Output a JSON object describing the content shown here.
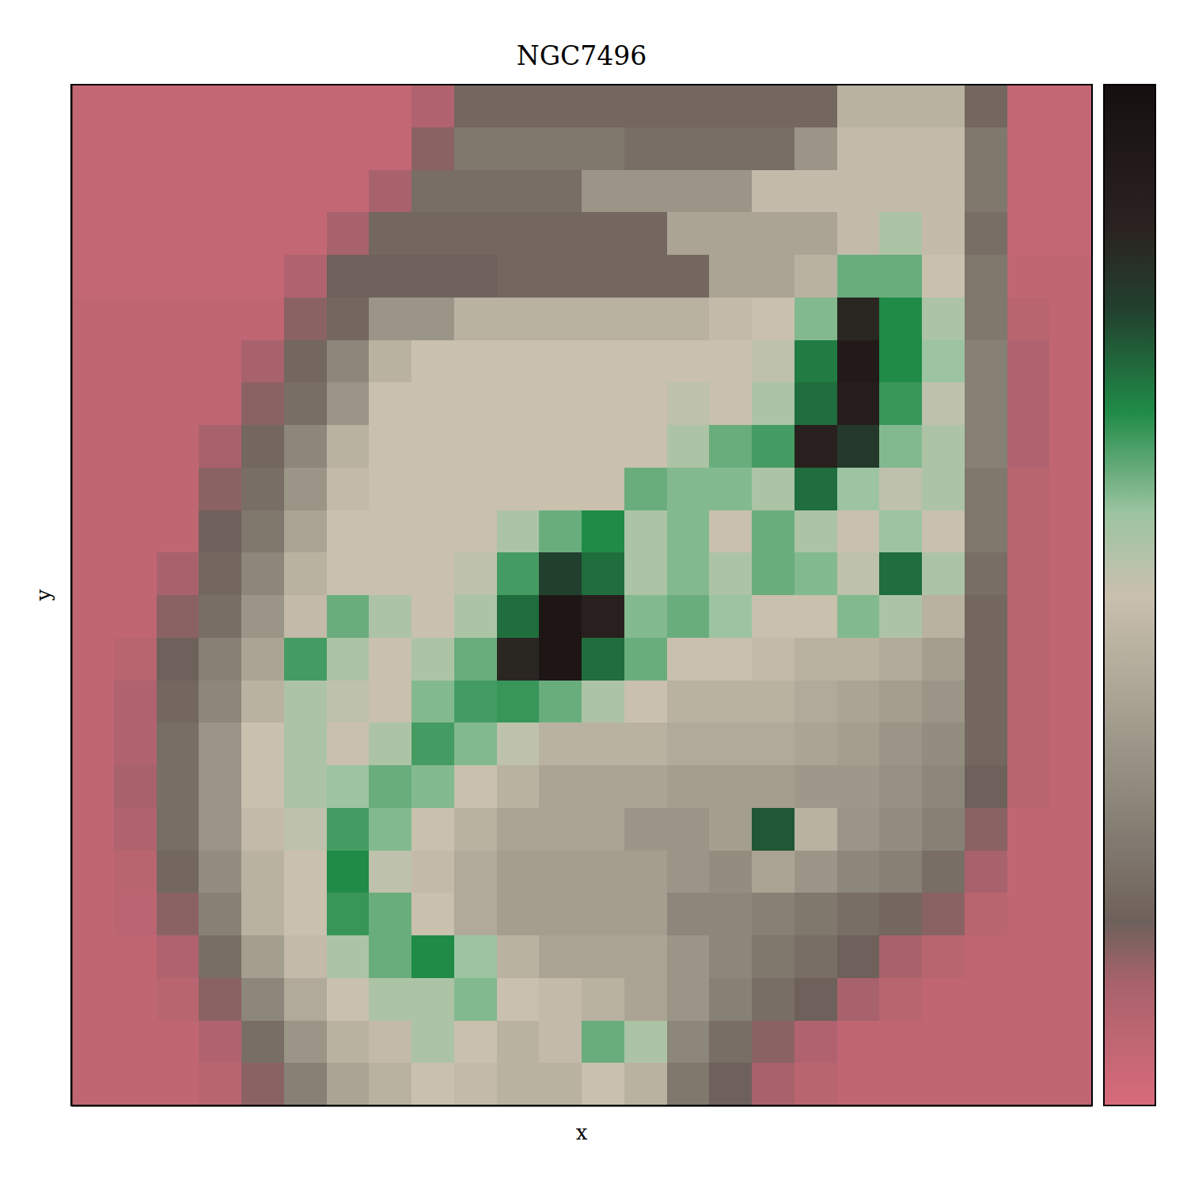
{
  "chart_data": {
    "type": "heatmap",
    "title": "NGC7496",
    "x_label": "x",
    "y_label": "y",
    "tick_labels": false,
    "zlim": [
      0,
      1
    ],
    "z": [
      [
        0.05,
        0.05,
        0.05,
        0.05,
        0.05,
        0.05,
        0.05,
        0.05,
        0.1,
        0.2,
        0.2,
        0.2,
        0.2,
        0.2,
        0.2,
        0.2,
        0.2,
        0.2,
        0.45,
        0.45,
        0.45,
        0.2,
        0.05,
        0.05
      ],
      [
        0.05,
        0.05,
        0.05,
        0.05,
        0.05,
        0.05,
        0.05,
        0.05,
        0.15,
        0.25,
        0.25,
        0.25,
        0.25,
        0.22,
        0.22,
        0.22,
        0.22,
        0.35,
        0.48,
        0.48,
        0.48,
        0.25,
        0.05,
        0.05
      ],
      [
        0.05,
        0.05,
        0.05,
        0.05,
        0.05,
        0.05,
        0.05,
        0.12,
        0.22,
        0.22,
        0.22,
        0.22,
        0.35,
        0.35,
        0.35,
        0.35,
        0.48,
        0.48,
        0.48,
        0.48,
        0.48,
        0.25,
        0.05,
        0.05
      ],
      [
        0.05,
        0.05,
        0.05,
        0.05,
        0.05,
        0.05,
        0.12,
        0.2,
        0.2,
        0.2,
        0.2,
        0.2,
        0.2,
        0.2,
        0.4,
        0.4,
        0.4,
        0.4,
        0.48,
        0.55,
        0.48,
        0.22,
        0.05,
        0.05
      ],
      [
        0.05,
        0.05,
        0.05,
        0.05,
        0.05,
        0.1,
        0.18,
        0.18,
        0.18,
        0.18,
        0.2,
        0.2,
        0.2,
        0.2,
        0.2,
        0.4,
        0.4,
        0.45,
        0.62,
        0.62,
        0.5,
        0.25,
        0.06,
        0.06
      ],
      [
        0.06,
        0.06,
        0.06,
        0.06,
        0.06,
        0.15,
        0.2,
        0.35,
        0.35,
        0.45,
        0.45,
        0.45,
        0.45,
        0.45,
        0.45,
        0.48,
        0.5,
        0.6,
        0.85,
        0.68,
        0.55,
        0.25,
        0.08,
        0.06
      ],
      [
        0.06,
        0.06,
        0.06,
        0.06,
        0.12,
        0.2,
        0.3,
        0.45,
        0.5,
        0.5,
        0.5,
        0.5,
        0.5,
        0.5,
        0.5,
        0.5,
        0.52,
        0.7,
        0.92,
        0.68,
        0.58,
        0.28,
        0.1,
        0.06
      ],
      [
        0.06,
        0.06,
        0.06,
        0.06,
        0.15,
        0.22,
        0.35,
        0.5,
        0.5,
        0.5,
        0.5,
        0.5,
        0.5,
        0.5,
        0.52,
        0.5,
        0.55,
        0.72,
        0.9,
        0.66,
        0.52,
        0.28,
        0.1,
        0.06
      ],
      [
        0.06,
        0.06,
        0.06,
        0.12,
        0.2,
        0.3,
        0.45,
        0.5,
        0.5,
        0.5,
        0.5,
        0.5,
        0.5,
        0.5,
        0.55,
        0.62,
        0.65,
        0.88,
        0.8,
        0.6,
        0.55,
        0.28,
        0.1,
        0.06
      ],
      [
        0.06,
        0.06,
        0.06,
        0.15,
        0.22,
        0.35,
        0.48,
        0.5,
        0.5,
        0.5,
        0.5,
        0.5,
        0.5,
        0.62,
        0.6,
        0.6,
        0.55,
        0.72,
        0.58,
        0.52,
        0.55,
        0.25,
        0.08,
        0.06
      ],
      [
        0.06,
        0.06,
        0.06,
        0.18,
        0.25,
        0.4,
        0.5,
        0.5,
        0.5,
        0.5,
        0.55,
        0.62,
        0.68,
        0.55,
        0.6,
        0.5,
        0.62,
        0.55,
        0.5,
        0.58,
        0.5,
        0.25,
        0.08,
        0.06
      ],
      [
        0.06,
        0.06,
        0.12,
        0.2,
        0.3,
        0.45,
        0.5,
        0.5,
        0.5,
        0.52,
        0.65,
        0.78,
        0.72,
        0.55,
        0.6,
        0.55,
        0.62,
        0.6,
        0.52,
        0.72,
        0.55,
        0.22,
        0.08,
        0.06
      ],
      [
        0.06,
        0.06,
        0.15,
        0.22,
        0.35,
        0.48,
        0.62,
        0.55,
        0.5,
        0.55,
        0.72,
        0.95,
        0.88,
        0.6,
        0.62,
        0.58,
        0.5,
        0.5,
        0.6,
        0.55,
        0.45,
        0.2,
        0.08,
        0.06
      ],
      [
        0.06,
        0.08,
        0.18,
        0.28,
        0.4,
        0.65,
        0.55,
        0.5,
        0.55,
        0.62,
        0.85,
        0.95,
        0.72,
        0.62,
        0.5,
        0.5,
        0.48,
        0.45,
        0.45,
        0.42,
        0.38,
        0.2,
        0.08,
        0.06
      ],
      [
        0.06,
        0.1,
        0.2,
        0.3,
        0.45,
        0.55,
        0.52,
        0.5,
        0.6,
        0.65,
        0.66,
        0.62,
        0.55,
        0.5,
        0.45,
        0.45,
        0.45,
        0.42,
        0.4,
        0.38,
        0.35,
        0.2,
        0.08,
        0.06
      ],
      [
        0.06,
        0.1,
        0.22,
        0.35,
        0.5,
        0.55,
        0.5,
        0.55,
        0.65,
        0.6,
        0.52,
        0.45,
        0.45,
        0.45,
        0.42,
        0.42,
        0.42,
        0.4,
        0.38,
        0.35,
        0.32,
        0.2,
        0.08,
        0.06
      ],
      [
        0.06,
        0.12,
        0.22,
        0.35,
        0.5,
        0.55,
        0.58,
        0.62,
        0.6,
        0.5,
        0.45,
        0.4,
        0.4,
        0.4,
        0.38,
        0.38,
        0.38,
        0.36,
        0.36,
        0.33,
        0.3,
        0.18,
        0.08,
        0.06
      ],
      [
        0.06,
        0.1,
        0.22,
        0.35,
        0.48,
        0.52,
        0.65,
        0.6,
        0.5,
        0.45,
        0.4,
        0.4,
        0.4,
        0.35,
        0.35,
        0.38,
        0.75,
        0.45,
        0.35,
        0.32,
        0.28,
        0.15,
        0.06,
        0.06
      ],
      [
        0.06,
        0.08,
        0.2,
        0.32,
        0.45,
        0.5,
        0.68,
        0.52,
        0.48,
        0.42,
        0.38,
        0.38,
        0.38,
        0.38,
        0.35,
        0.32,
        0.4,
        0.35,
        0.3,
        0.28,
        0.22,
        0.12,
        0.06,
        0.06
      ],
      [
        0.06,
        0.07,
        0.15,
        0.28,
        0.45,
        0.5,
        0.66,
        0.62,
        0.5,
        0.42,
        0.38,
        0.38,
        0.38,
        0.38,
        0.3,
        0.3,
        0.28,
        0.25,
        0.22,
        0.2,
        0.15,
        0.08,
        0.06,
        0.06
      ],
      [
        0.06,
        0.06,
        0.1,
        0.22,
        0.38,
        0.48,
        0.55,
        0.62,
        0.68,
        0.58,
        0.45,
        0.4,
        0.4,
        0.4,
        0.35,
        0.3,
        0.25,
        0.22,
        0.18,
        0.12,
        0.08,
        0.06,
        0.06,
        0.06
      ],
      [
        0.06,
        0.06,
        0.08,
        0.15,
        0.3,
        0.42,
        0.5,
        0.55,
        0.55,
        0.6,
        0.5,
        0.48,
        0.45,
        0.4,
        0.35,
        0.28,
        0.22,
        0.18,
        0.12,
        0.08,
        0.06,
        0.06,
        0.06,
        0.06
      ],
      [
        0.06,
        0.06,
        0.06,
        0.1,
        0.22,
        0.35,
        0.45,
        0.48,
        0.55,
        0.5,
        0.45,
        0.48,
        0.62,
        0.55,
        0.3,
        0.22,
        0.15,
        0.1,
        0.06,
        0.06,
        0.06,
        0.06,
        0.06,
        0.06
      ],
      [
        0.06,
        0.06,
        0.06,
        0.08,
        0.15,
        0.28,
        0.4,
        0.45,
        0.5,
        0.48,
        0.45,
        0.45,
        0.5,
        0.45,
        0.25,
        0.18,
        0.12,
        0.08,
        0.06,
        0.06,
        0.06,
        0.06,
        0.06,
        0.06
      ]
    ]
  }
}
